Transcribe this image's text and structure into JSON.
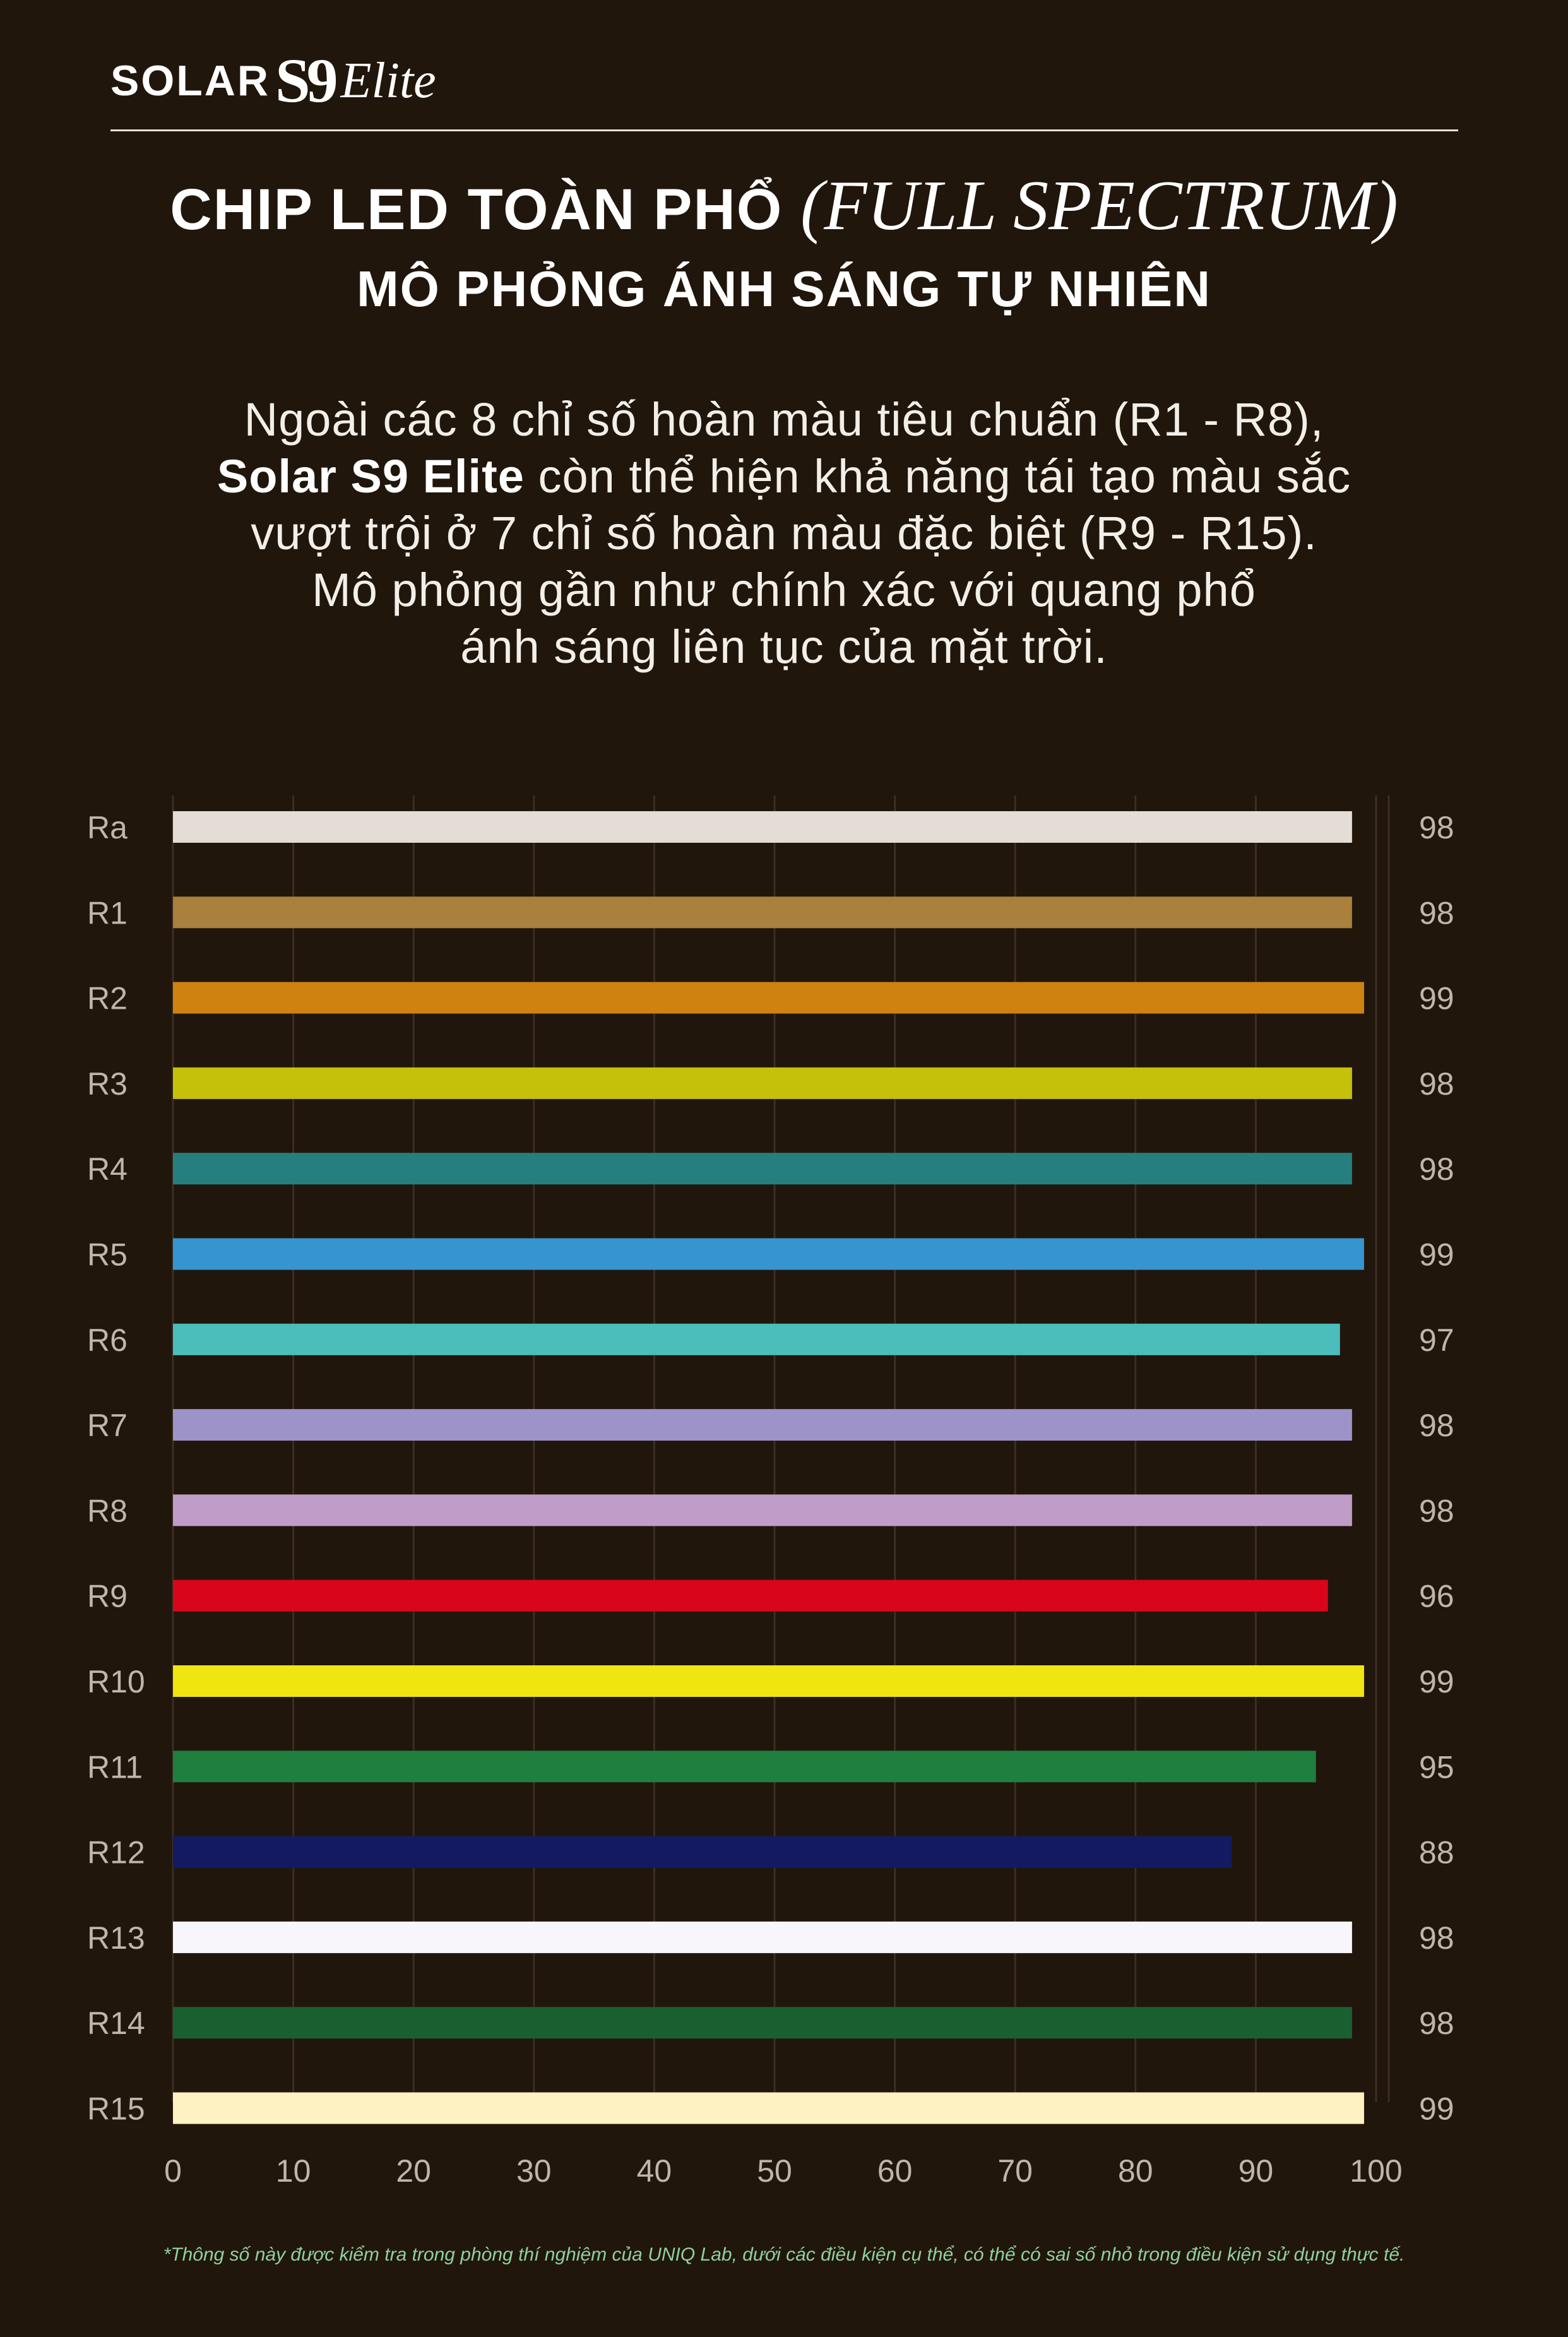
{
  "brand": {
    "solar": "SOLAR",
    "s9": "S9",
    "elite": "Elite"
  },
  "header": {
    "title_main": "CHIP LED TOÀN PHỔ",
    "title_italic": "(FULL SPECTRUM)",
    "subtitle": "MÔ PHỎNG ÁNH SÁNG TỰ NHIÊN"
  },
  "description": {
    "line1": "Ngoài các 8 chỉ số hoàn màu tiêu chuẩn (R1 - R8),",
    "line2_bold": "Solar S9 Elite",
    "line2_rest": " còn thể hiện khả năng tái tạo màu sắc",
    "line3": "vượt trội ở 7 chỉ số hoàn màu đặc biệt (R9 - R15).",
    "line4": "Mô phỏng gần như chính xác với quang phổ",
    "line5": "ánh sáng liên tục của mặt trời."
  },
  "footnote": "*Thông số này được kiểm tra trong phòng thí nghiệm của UNIQ Lab, dưới các điều kiện cụ thể, có thể có sai số nhỏ trong điều kiện sử dụng thực tế.",
  "chart_data": {
    "type": "bar",
    "orientation": "horizontal",
    "categories": [
      "Ra",
      "R1",
      "R2",
      "R3",
      "R4",
      "R5",
      "R6",
      "R7",
      "R8",
      "R9",
      "R10",
      "R11",
      "R12",
      "R13",
      "R14",
      "R15"
    ],
    "values": [
      98,
      98,
      99,
      98,
      98,
      99,
      97,
      98,
      98,
      96,
      99,
      95,
      88,
      98,
      98,
      99
    ],
    "colors": [
      "#e3ddd6",
      "#a9803c",
      "#cf820f",
      "#c5c10a",
      "#267f7f",
      "#3695d1",
      "#4bbdbb",
      "#9d93c8",
      "#c09dc9",
      "#d9051b",
      "#f0e60f",
      "#1e7f3e",
      "#141a62",
      "#f8f6fa",
      "#1a5f30",
      "#fff2c2"
    ],
    "xlim": [
      0,
      100
    ],
    "xticks": [
      "0",
      "10",
      "20",
      "30",
      "40",
      "50",
      "60",
      "70",
      "80",
      "90",
      "100"
    ],
    "grid": "vertical",
    "value_labels_position": "right"
  }
}
